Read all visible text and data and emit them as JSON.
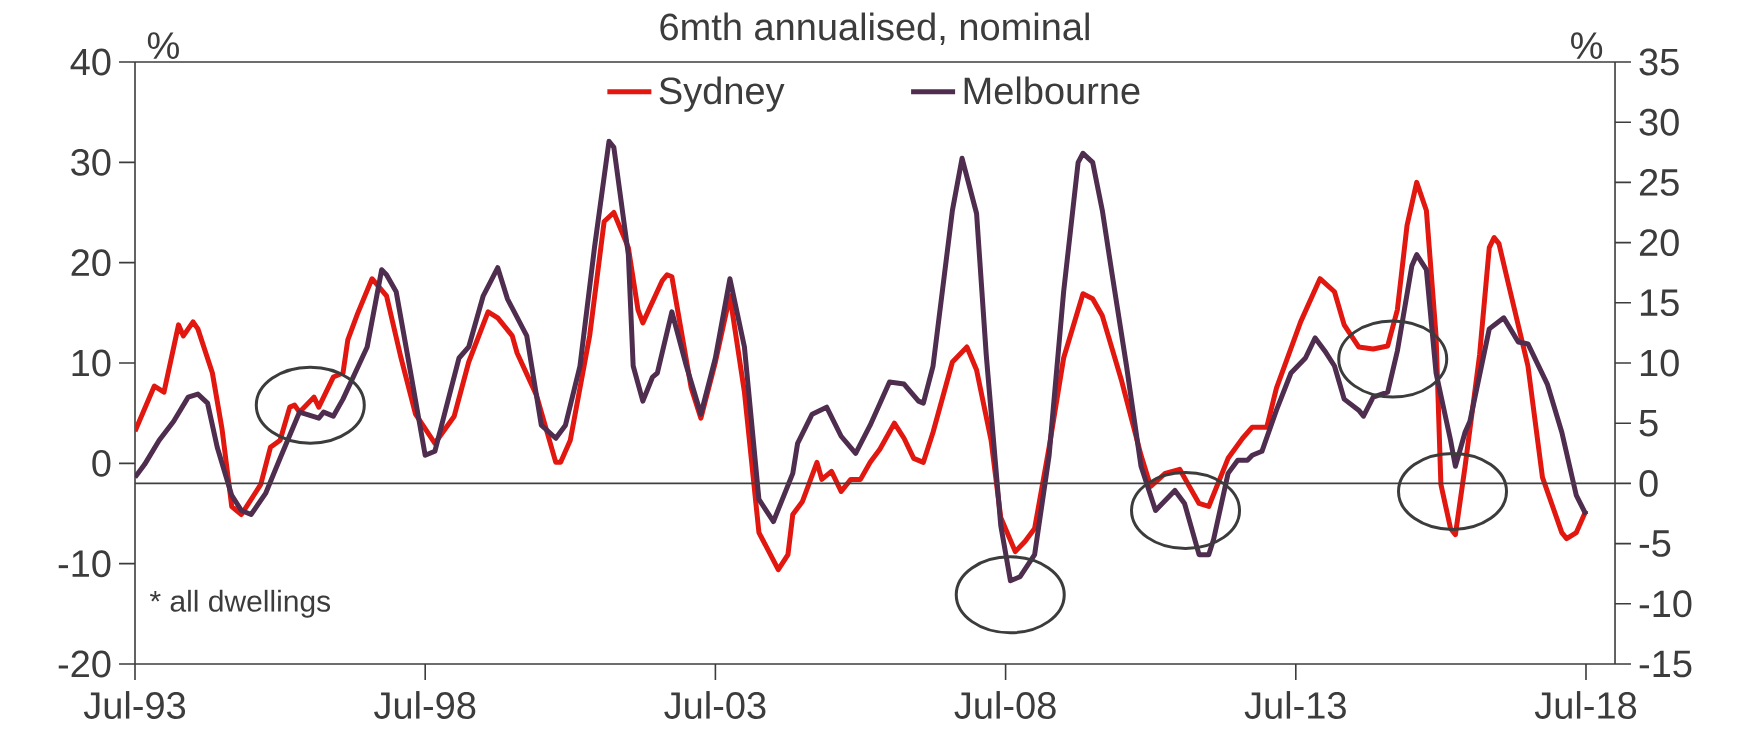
{
  "chart_data": {
    "type": "line",
    "title": "6mth annualised, nominal",
    "ylabel": "%",
    "y2label": "%",
    "annotations": [
      "* all dwellings"
    ],
    "xlim": [
      "1993-07",
      "2019-01"
    ],
    "xticks": [
      {
        "value": "1993-07",
        "label": "Jul-93"
      },
      {
        "value": "1998-07",
        "label": "Jul-98"
      },
      {
        "value": "2003-07",
        "label": "Jul-03"
      },
      {
        "value": "2008-07",
        "label": "Jul-08"
      },
      {
        "value": "2013-07",
        "label": "Jul-13"
      },
      {
        "value": "2018-07",
        "label": "Jul-18"
      }
    ],
    "ylim": [
      -20,
      40
    ],
    "yticks": [
      -20,
      -10,
      0,
      10,
      20,
      30,
      40
    ],
    "y2lim": [
      -15,
      35
    ],
    "y2ticks": [
      -15,
      -10,
      -5,
      0,
      5,
      10,
      15,
      20,
      25,
      30,
      35
    ],
    "ref_lines": [
      {
        "axis": "y2",
        "value": 0,
        "color": "#404040"
      }
    ],
    "legend": "top",
    "grid": false,
    "series": [
      {
        "name": "Sydney",
        "color": "#e2170f",
        "x": [
          "1993-07",
          "1993-11",
          "1994-01",
          "1994-04",
          "1994-05",
          "1994-07",
          "1994-08",
          "1994-11",
          "1995-01",
          "1995-03",
          "1995-05",
          "1995-09",
          "1995-11",
          "1996-01",
          "1996-03",
          "1996-04",
          "1996-05",
          "1996-08",
          "1996-09",
          "1996-12",
          "1997-02",
          "1997-03",
          "1997-05",
          "1997-08",
          "1997-11",
          "1998-02",
          "1998-05",
          "1998-09",
          "1999-01",
          "1999-04",
          "1999-08",
          "1999-10",
          "2000-01",
          "2000-02",
          "2000-06",
          "2000-10",
          "2000-11",
          "2001-01",
          "2001-05",
          "2001-08",
          "2001-10",
          "2002-01",
          "2002-03",
          "2002-04",
          "2002-08",
          "2002-09",
          "2002-10",
          "2003-02",
          "2003-04",
          "2003-07",
          "2003-10",
          "2004-01",
          "2004-04",
          "2004-08",
          "2004-10",
          "2004-11",
          "2005-01",
          "2005-04",
          "2005-05",
          "2005-07",
          "2005-09",
          "2005-11",
          "2006-01",
          "2006-03",
          "2006-05",
          "2006-08",
          "2006-10",
          "2006-12",
          "2007-02",
          "2007-04",
          "2007-08",
          "2007-11",
          "2008-01",
          "2008-04",
          "2008-06",
          "2008-09",
          "2008-11",
          "2009-01",
          "2009-04",
          "2009-07",
          "2009-11",
          "2010-01",
          "2010-03",
          "2010-07",
          "2010-11",
          "2011-01",
          "2011-04",
          "2011-07",
          "2011-09",
          "2011-11",
          "2012-01",
          "2012-05",
          "2012-08",
          "2012-10",
          "2013-01",
          "2013-03",
          "2013-08",
          "2013-12",
          "2014-03",
          "2014-05",
          "2014-08",
          "2014-11",
          "2015-02",
          "2015-04",
          "2015-06",
          "2015-08",
          "2015-10",
          "2015-12",
          "2016-01",
          "2016-03",
          "2016-04",
          "2016-06",
          "2016-09",
          "2016-11",
          "2016-12",
          "2017-01",
          "2017-03",
          "2017-07",
          "2017-10",
          "2018-02",
          "2018-03",
          "2018-05",
          "2018-07"
        ],
        "values": [
          3.2,
          7.7,
          7.1,
          13.8,
          12.7,
          14.1,
          13.4,
          9.0,
          3.4,
          -4.3,
          -5.1,
          -2.1,
          1.6,
          2.3,
          5.6,
          5.8,
          5.1,
          6.6,
          5.6,
          8.6,
          9.0,
          12.3,
          14.9,
          18.4,
          16.7,
          10.5,
          4.9,
          2.0,
          4.7,
          10.1,
          15.1,
          14.5,
          12.7,
          11.0,
          6.8,
          0.1,
          0.1,
          2.3,
          12.7,
          24.1,
          25.0,
          21.5,
          15.3,
          14.0,
          18.2,
          18.8,
          18.6,
          7.5,
          4.5,
          10.1,
          16.7,
          7.1,
          -6.9,
          -10.6,
          -9.1,
          -5.1,
          -3.8,
          0.1,
          -1.6,
          -0.8,
          -2.8,
          -1.6,
          -1.6,
          0.1,
          1.4,
          4.0,
          2.5,
          0.5,
          0.1,
          3.1,
          10.1,
          11.6,
          9.3,
          2.3,
          -5.4,
          -8.8,
          -7.8,
          -6.5,
          1.6,
          10.5,
          16.9,
          16.4,
          14.7,
          8.2,
          0.8,
          -2.3,
          -1.0,
          -0.6,
          -2.3,
          -4.0,
          -4.3,
          0.5,
          2.5,
          3.6,
          3.6,
          7.5,
          14.1,
          18.4,
          17.1,
          13.8,
          11.6,
          11.4,
          11.7,
          15.3,
          23.7,
          28.0,
          25.2,
          12.7,
          -2.1,
          -6.5,
          -7.1,
          -0.3,
          10.8,
          21.5,
          22.5,
          21.9,
          17.8,
          9.7,
          -1.4,
          -6.9,
          -7.5,
          -6.9,
          -4.7
        ]
      },
      {
        "name": "Melbourne",
        "color": "#4f2d4f",
        "x": [
          "1993-07",
          "1993-09",
          "1993-12",
          "1994-03",
          "1994-06",
          "1994-08",
          "1994-10",
          "1994-12",
          "1995-03",
          "1995-05",
          "1995-07",
          "1995-10",
          "1996-01",
          "1996-05",
          "1996-09",
          "1996-10",
          "1996-12",
          "1997-02",
          "1997-07",
          "1997-10",
          "1997-11",
          "1998-01",
          "1998-04",
          "1998-07",
          "1998-09",
          "1998-12",
          "1999-02",
          "1999-04",
          "1999-07",
          "1999-10",
          "1999-12",
          "2000-04",
          "2000-07",
          "2000-10",
          "2000-12",
          "2001-03",
          "2001-06",
          "2001-09",
          "2001-10",
          "2002-01",
          "2002-02",
          "2002-04",
          "2002-06",
          "2002-07",
          "2002-10",
          "2003-01",
          "2003-04",
          "2003-07",
          "2003-10",
          "2004-01",
          "2004-04",
          "2004-07",
          "2004-11",
          "2004-12",
          "2005-03",
          "2005-06",
          "2005-09",
          "2005-12",
          "2006-03",
          "2006-07",
          "2006-10",
          "2007-01",
          "2007-02",
          "2007-04",
          "2007-08",
          "2007-10",
          "2008-01",
          "2008-03",
          "2008-06",
          "2008-08",
          "2008-10",
          "2009-01",
          "2009-04",
          "2009-07",
          "2009-10",
          "2009-11",
          "2010-01",
          "2010-03",
          "2010-05",
          "2010-08",
          "2010-11",
          "2011-02",
          "2011-06",
          "2011-08",
          "2011-11",
          "2012-01",
          "2012-02",
          "2012-05",
          "2012-07",
          "2012-09",
          "2012-10",
          "2012-12",
          "2013-03",
          "2013-06",
          "2013-09",
          "2013-11",
          "2014-01",
          "2014-03",
          "2014-05",
          "2014-08",
          "2014-09",
          "2014-11",
          "2015-02",
          "2015-04",
          "2015-07",
          "2015-08",
          "2015-10",
          "2015-12",
          "2016-03",
          "2016-04",
          "2016-06",
          "2016-07",
          "2016-11",
          "2017-02",
          "2017-05",
          "2017-07",
          "2017-11",
          "2018-02",
          "2018-05",
          "2018-07"
        ],
        "values": [
          -1.4,
          -0.1,
          2.3,
          4.2,
          6.6,
          6.9,
          6.0,
          1.6,
          -3.2,
          -4.7,
          -5.1,
          -3.0,
          0.5,
          5.1,
          4.5,
          5.1,
          4.7,
          6.4,
          11.6,
          19.3,
          18.8,
          17.1,
          9.0,
          0.8,
          1.2,
          6.8,
          10.5,
          11.6,
          16.7,
          19.5,
          16.4,
          12.7,
          3.8,
          2.5,
          3.8,
          9.7,
          21.5,
          32.1,
          31.5,
          20.8,
          9.7,
          6.2,
          8.6,
          9.0,
          15.1,
          9.7,
          4.9,
          10.5,
          18.4,
          11.6,
          -3.6,
          -5.8,
          -1.0,
          2.0,
          4.9,
          5.6,
          2.7,
          1.0,
          3.8,
          8.1,
          7.9,
          6.2,
          6.0,
          9.7,
          25.2,
          30.4,
          24.9,
          10.8,
          -6.2,
          -11.7,
          -11.3,
          -9.1,
          0.8,
          17.1,
          30.0,
          30.9,
          30.0,
          25.2,
          18.9,
          9.7,
          -0.3,
          -4.7,
          -2.7,
          -4.0,
          -9.1,
          -9.1,
          -7.6,
          -1.0,
          0.3,
          0.3,
          0.8,
          1.2,
          5.3,
          9.0,
          10.5,
          12.5,
          11.2,
          9.7,
          6.4,
          5.3,
          4.7,
          6.6,
          7.1,
          11.2,
          19.7,
          20.8,
          19.3,
          9.0,
          2.3,
          -0.3,
          3.1,
          4.2,
          13.4,
          14.5,
          12.1,
          11.9,
          7.9,
          3.1,
          -3.2,
          -5.1
        ]
      }
    ]
  }
}
